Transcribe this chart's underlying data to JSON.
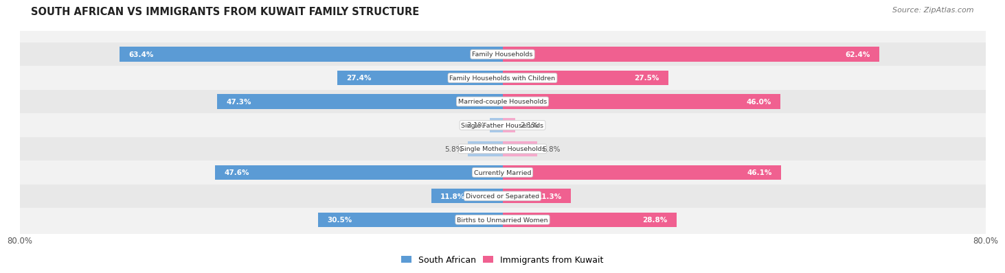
{
  "title": "SOUTH AFRICAN VS IMMIGRANTS FROM KUWAIT FAMILY STRUCTURE",
  "source": "Source: ZipAtlas.com",
  "categories": [
    "Family Households",
    "Family Households with Children",
    "Married-couple Households",
    "Single Father Households",
    "Single Mother Households",
    "Currently Married",
    "Divorced or Separated",
    "Births to Unmarried Women"
  ],
  "south_african": [
    63.4,
    27.4,
    47.3,
    2.1,
    5.8,
    47.6,
    11.8,
    30.5
  ],
  "kuwait": [
    62.4,
    27.5,
    46.0,
    2.1,
    5.8,
    46.1,
    11.3,
    28.8
  ],
  "max_val": 80.0,
  "color_sa_large": "#5B9BD5",
  "color_sa_small": "#A8C8E8",
  "color_kw_large": "#F06090",
  "color_kw_small": "#F5AACC",
  "bg_row_odd": "#F2F2F2",
  "bg_row_even": "#E8E8E8",
  "title_color": "#222222",
  "source_color": "#777777",
  "val_label_inside_color": "#FFFFFF",
  "val_label_outside_color": "#555555",
  "legend_sa": "South African",
  "legend_kw": "Immigrants from Kuwait",
  "large_threshold": 10.0
}
